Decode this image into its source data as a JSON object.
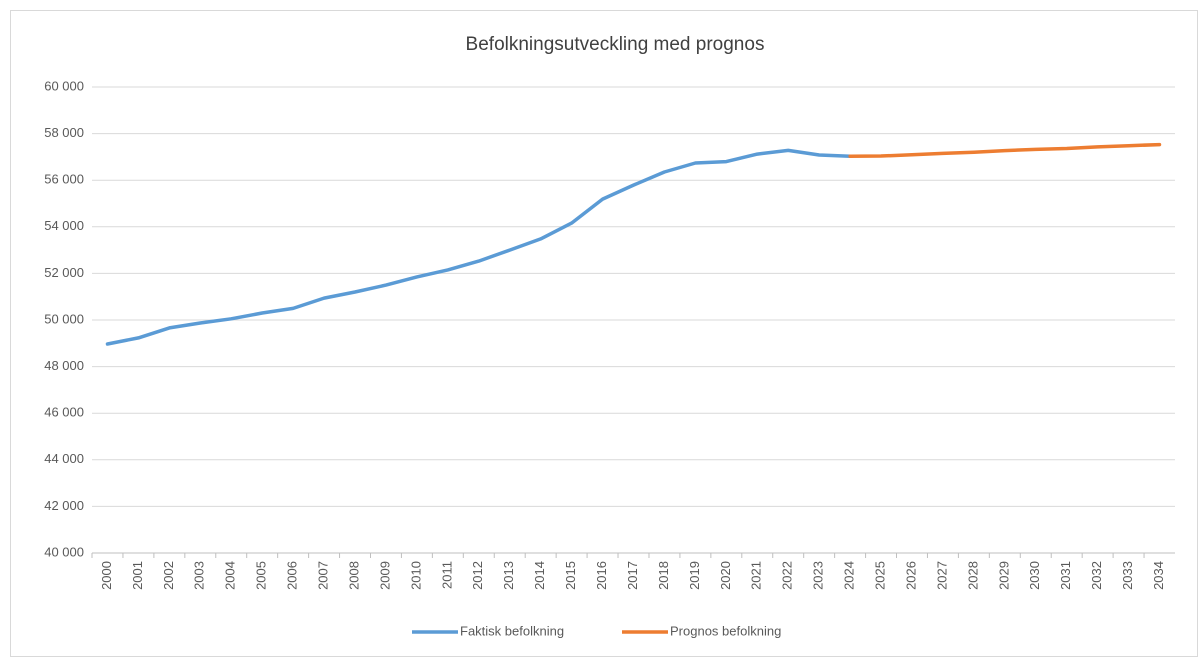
{
  "chart_data": {
    "type": "line",
    "title": "Befolkningsutveckling med prognos",
    "categories": [
      "2000",
      "2001",
      "2002",
      "2003",
      "2004",
      "2005",
      "2006",
      "2007",
      "2008",
      "2009",
      "2010",
      "2011",
      "2012",
      "2013",
      "2014",
      "2015",
      "2016",
      "2017",
      "2018",
      "2019",
      "2020",
      "2021",
      "2022",
      "2023",
      "2024",
      "2025",
      "2026",
      "2027",
      "2028",
      "2029",
      "2030",
      "2031",
      "2032",
      "2033",
      "2034"
    ],
    "series": [
      {
        "name": "Faktisk befolkning",
        "color": "#5b9bd5",
        "values": [
          48970,
          49230,
          49660,
          49870,
          50050,
          50300,
          50500,
          50940,
          51200,
          51500,
          51850,
          52150,
          52530,
          53000,
          53480,
          54160,
          55190,
          55790,
          56350,
          56740,
          56800,
          57120,
          57280,
          57080,
          57030,
          null,
          null,
          null,
          null,
          null,
          null,
          null,
          null,
          null,
          null
        ]
      },
      {
        "name": "Prognos befolkning",
        "color": "#ed7d31",
        "values": [
          null,
          null,
          null,
          null,
          null,
          null,
          null,
          null,
          null,
          null,
          null,
          null,
          null,
          null,
          null,
          null,
          null,
          null,
          null,
          null,
          null,
          null,
          null,
          null,
          57030,
          57040,
          57090,
          57150,
          57200,
          57270,
          57320,
          57360,
          57430,
          57480,
          57530
        ]
      }
    ],
    "ylim": [
      40000,
      60000
    ],
    "yticks": [
      {
        "value": 40000,
        "label": "40 000"
      },
      {
        "value": 42000,
        "label": "42 000"
      },
      {
        "value": 44000,
        "label": "44 000"
      },
      {
        "value": 46000,
        "label": "46 000"
      },
      {
        "value": 48000,
        "label": "48 000"
      },
      {
        "value": 50000,
        "label": "50 000"
      },
      {
        "value": 52000,
        "label": "52 000"
      },
      {
        "value": 54000,
        "label": "54 000"
      },
      {
        "value": 56000,
        "label": "56 000"
      },
      {
        "value": 58000,
        "label": "58 000"
      },
      {
        "value": 60000,
        "label": "60 000"
      }
    ],
    "grid": true,
    "legend": "bottom"
  }
}
